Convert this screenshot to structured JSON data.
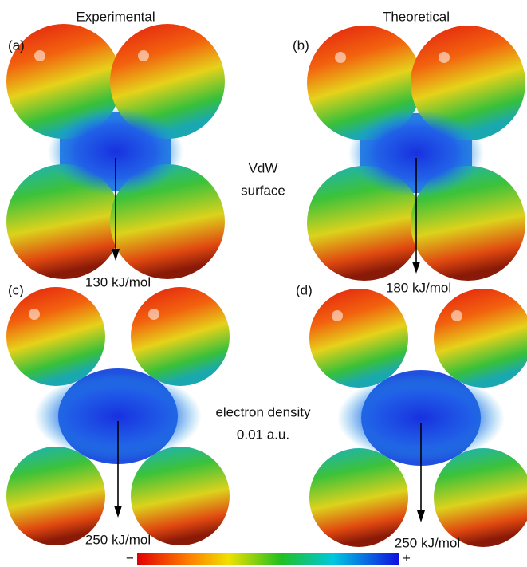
{
  "columns": [
    "Experimental",
    "Theoretical"
  ],
  "panels": [
    {
      "label": "(a)",
      "energy": "130 kJ/mol"
    },
    {
      "label": "(b)",
      "energy": "180 kJ/mol"
    },
    {
      "label": "(c)",
      "energy": "250 kJ/mol"
    },
    {
      "label": "(d)",
      "energy": "250 kJ/mol"
    }
  ],
  "annotations": [
    {
      "lines": [
        "VdW",
        "surface"
      ]
    },
    {
      "lines": [
        "electron density",
        "0.01 a.u."
      ]
    }
  ],
  "colorbar": {
    "min_label": "−",
    "max_label": "+"
  }
}
